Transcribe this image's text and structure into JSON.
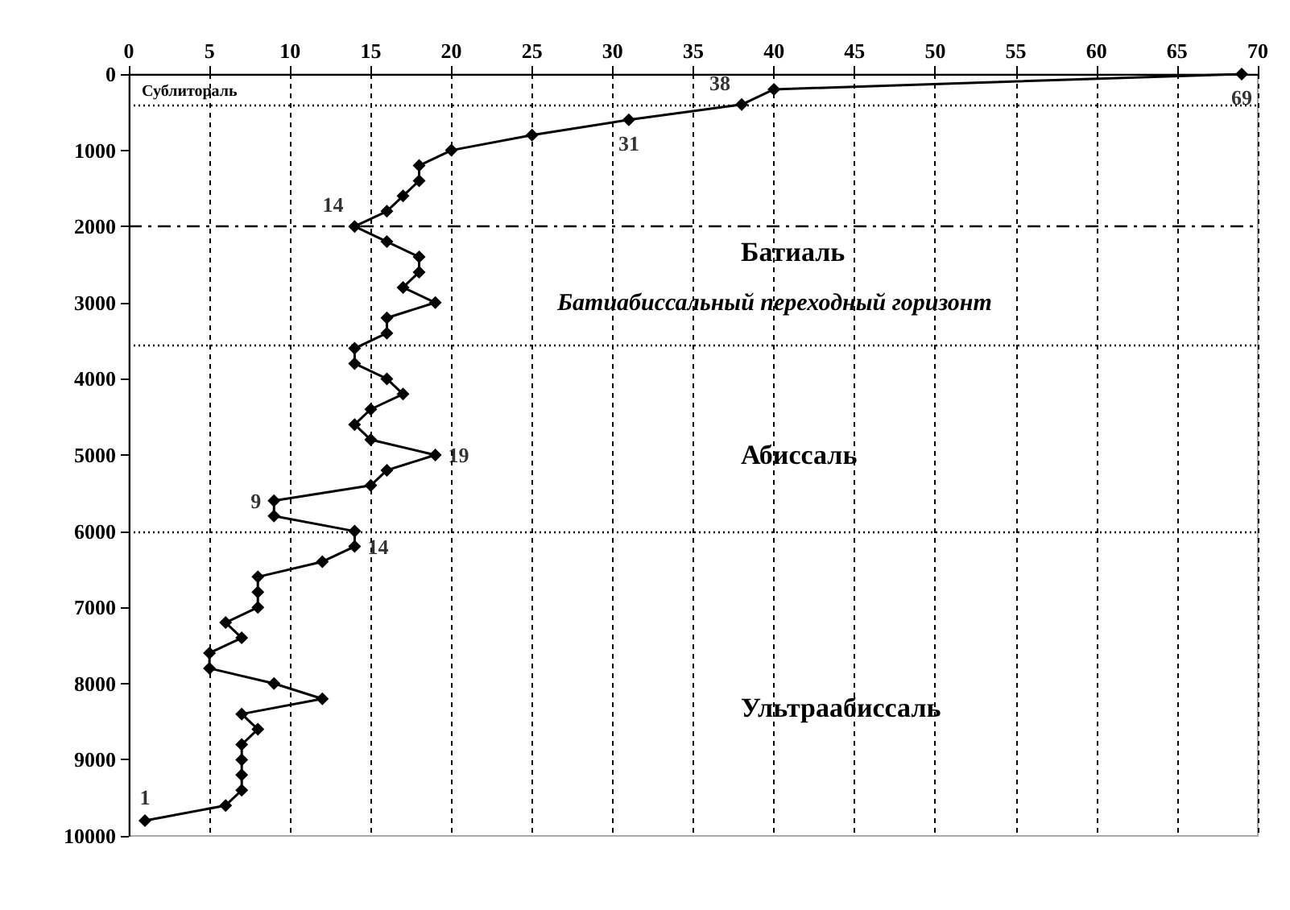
{
  "chart_data": {
    "type": "line",
    "x": [
      69,
      40,
      38,
      31,
      25,
      20,
      18,
      18,
      17,
      16,
      14,
      16,
      18,
      18,
      17,
      19,
      16,
      16,
      14,
      14,
      16,
      17,
      15,
      14,
      15,
      19,
      16,
      15,
      9,
      9,
      14,
      14,
      12,
      8,
      8,
      8,
      6,
      7,
      5,
      5,
      9,
      12,
      7,
      8,
      7,
      7,
      7,
      7,
      6,
      1
    ],
    "values": [
      0,
      200,
      400,
      600,
      800,
      1000,
      1200,
      1400,
      1600,
      1800,
      2000,
      2200,
      2400,
      2600,
      2800,
      3000,
      3200,
      3400,
      3600,
      3800,
      4000,
      4200,
      4400,
      4600,
      4800,
      5000,
      5200,
      5400,
      5600,
      5800,
      6000,
      6200,
      6400,
      6600,
      6800,
      7000,
      7200,
      7400,
      7600,
      7800,
      8000,
      8200,
      8400,
      8600,
      8800,
      9000,
      9200,
      9400,
      9600,
      9800
    ],
    "color": "#000000",
    "marker": "diamond",
    "line_style": "solid",
    "xlim": [
      0,
      70
    ],
    "xticks": [
      0,
      5,
      10,
      15,
      20,
      25,
      30,
      35,
      40,
      45,
      50,
      55,
      60,
      65,
      70
    ],
    "ylim": [
      10000,
      0
    ],
    "yticks": [
      0,
      1000,
      2000,
      3000,
      4000,
      5000,
      6000,
      7000,
      8000,
      9000,
      10000
    ],
    "grid": "x",
    "ref_lines": [
      {
        "axis": "y",
        "value": 400,
        "label": null,
        "line_style": "dotted"
      },
      {
        "axis": "y",
        "value": 2000,
        "label": null,
        "line_style": "dashdot"
      },
      {
        "axis": "y",
        "value": 3550,
        "label": null,
        "line_style": "dotted"
      },
      {
        "axis": "y",
        "value": 6000,
        "label": null,
        "line_style": "dotted"
      }
    ],
    "annotations": [
      "Сублитораль",
      "Батиаль",
      "Батиабиссальный переходный горизонт",
      "Абиссаль",
      "Ультраабиссаль",
      {
        "text": "69",
        "x": 69,
        "y": 0
      },
      {
        "text": "38",
        "x": 38,
        "y": 400
      },
      {
        "text": "31",
        "x": 31,
        "y": 600
      },
      {
        "text": "14",
        "x": 14,
        "y": 2000
      },
      {
        "text": "19",
        "x": 19,
        "y": 5000
      },
      {
        "text": "9",
        "x": 9,
        "y": 5600
      },
      {
        "text": "14",
        "x": 14,
        "y": 6200
      },
      {
        "text": "1",
        "x": 1,
        "y": 9800
      }
    ]
  }
}
